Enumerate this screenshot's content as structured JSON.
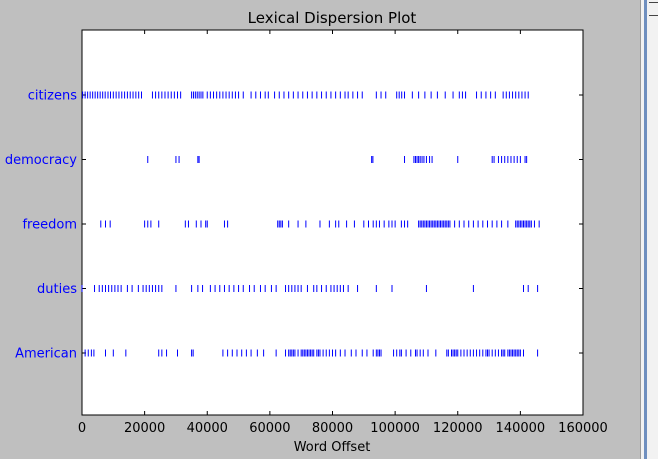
{
  "chart_data": {
    "type": "scatter",
    "title": "Lexical Dispersion Plot",
    "xlabel": "Word Offset",
    "ylabel": "",
    "xlim": [
      0,
      160000
    ],
    "x_ticks": [
      "0",
      "20000",
      "40000",
      "60000",
      "80000",
      "100000",
      "120000",
      "140000",
      "160000"
    ],
    "marker": "|",
    "marker_color": "#0000ff",
    "grid": false,
    "series": [
      {
        "name": "citizens",
        "values": [
          200,
          1000,
          1800,
          2600,
          3400,
          4200,
          5000,
          5800,
          6600,
          7400,
          8300,
          9100,
          10000,
          10900,
          11800,
          12700,
          13600,
          14500,
          15400,
          16300,
          17200,
          18100,
          19000,
          22500,
          23500,
          24500,
          25500,
          26500,
          27500,
          28500,
          29500,
          30500,
          31500,
          35000,
          35600,
          36200,
          36800,
          37400,
          38000,
          38600,
          40000,
          41000,
          42000,
          43000,
          44000,
          45000,
          46000,
          47000,
          48000,
          49000,
          50000,
          51500,
          54000,
          55500,
          57000,
          58500,
          59500,
          61500,
          63000,
          64500,
          66000,
          67500,
          69000,
          70500,
          72000,
          73500,
          75000,
          76500,
          78000,
          79500,
          81000,
          82500,
          84000,
          85000,
          86500,
          88000,
          89500,
          94000,
          95500,
          97000,
          100500,
          101300,
          102100,
          103000,
          105500,
          107500,
          109500,
          111500,
          113500,
          116000,
          118500,
          120500,
          121500,
          122500,
          126000,
          127500,
          129000,
          130500,
          132000,
          134500,
          135500,
          136500,
          137500,
          138500,
          139500,
          140500,
          141500,
          142500
        ]
      },
      {
        "name": "democracy",
        "values": [
          21000,
          30000,
          31000,
          37000,
          37400,
          92500,
          92900,
          103000,
          106000,
          106500,
          107000,
          107500,
          108000,
          108600,
          109200,
          110000,
          111000,
          111800,
          120000,
          131000,
          131600,
          133000,
          134000,
          135000,
          136000,
          137000,
          138000,
          139000,
          140000,
          141500,
          142000
        ]
      },
      {
        "name": "freedom",
        "values": [
          6000,
          7500,
          9000,
          20000,
          21000,
          22000,
          24500,
          33000,
          34000,
          36500,
          38000,
          39500,
          40000,
          45500,
          46500,
          62500,
          63000,
          63500,
          64000,
          66000,
          69000,
          71500,
          76000,
          79000,
          81000,
          82000,
          84500,
          87000,
          90000,
          91500,
          93000,
          94000,
          95000,
          96500,
          98000,
          99000,
          100000,
          102000,
          103000,
          104000,
          107500,
          108000,
          108500,
          109000,
          109500,
          110000,
          110500,
          111000,
          111500,
          112000,
          112500,
          113000,
          113500,
          114000,
          114500,
          115000,
          115500,
          116000,
          116500,
          117000,
          117500,
          119000,
          120500,
          122000,
          123500,
          125000,
          126500,
          128000,
          129500,
          131000,
          132500,
          134000,
          136000,
          138500,
          139000,
          139500,
          140000,
          140500,
          141000,
          141500,
          142000,
          142500,
          143000,
          143500,
          144500,
          146000
        ]
      },
      {
        "name": "duties",
        "values": [
          0,
          4000,
          5500,
          6500,
          7500,
          8500,
          9500,
          10500,
          11500,
          12500,
          14500,
          16000,
          18000,
          19500,
          20500,
          21500,
          22500,
          23500,
          24500,
          25500,
          30000,
          35000,
          37000,
          38500,
          41000,
          42500,
          44000,
          45500,
          47000,
          48500,
          50000,
          51500,
          53500,
          55000,
          57000,
          58500,
          60500,
          62000,
          65000,
          66000,
          67000,
          68000,
          69000,
          70000,
          72000,
          74000,
          75000,
          76500,
          78000,
          79500,
          80500,
          81500,
          82500,
          83500,
          85000,
          88000,
          94000,
          99000,
          110000,
          125000,
          141000,
          142500,
          145500
        ]
      },
      {
        "name": "American",
        "values": [
          1000,
          2000,
          3000,
          3800,
          7500,
          10000,
          14000,
          24500,
          25500,
          27000,
          30500,
          35000,
          35500,
          45000,
          46500,
          48000,
          49500,
          51000,
          52500,
          54000,
          56000,
          58000,
          62000,
          65000,
          66000,
          66500,
          67000,
          67500,
          68000,
          69000,
          70000,
          70500,
          71000,
          71500,
          72000,
          72500,
          73000,
          73500,
          74000,
          75000,
          75500,
          76000,
          77000,
          78000,
          79000,
          80000,
          81000,
          82500,
          84000,
          86000,
          87500,
          89500,
          91000,
          93000,
          94000,
          94500,
          95000,
          95500,
          99500,
          100500,
          101500,
          102000,
          103500,
          105000,
          106500,
          107000,
          108000,
          109000,
          110500,
          113000,
          116500,
          117000,
          118000,
          118500,
          119000,
          119500,
          120000,
          121000,
          122000,
          123000,
          124000,
          125000,
          126000,
          127000,
          128000,
          129000,
          129500,
          130000,
          131000,
          132000,
          133000,
          134000,
          134500,
          135000,
          136000,
          136500,
          137000,
          137500,
          138000,
          138500,
          139000,
          139500,
          140000,
          141000,
          145500
        ]
      }
    ]
  }
}
